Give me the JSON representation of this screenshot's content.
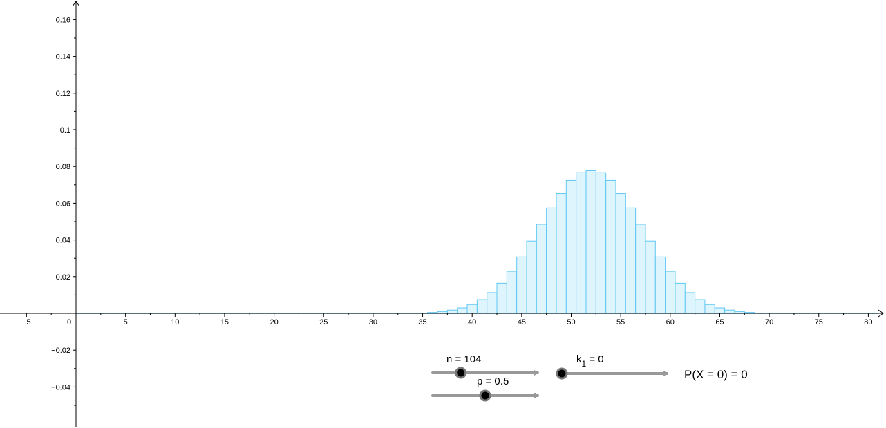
{
  "sliders": {
    "n": {
      "label": "n = 104",
      "value": 104,
      "min": 1,
      "max": 1000
    },
    "p": {
      "label": "p = 0.5",
      "value": 0.5,
      "min": 0,
      "max": 1
    },
    "k": {
      "label_main": "k",
      "label_sub": "1",
      "label_rest": " = 0",
      "value": 0,
      "min": 0,
      "max": 100
    }
  },
  "probability_text": "P(X = 0) = 0",
  "colors": {
    "bar_fill": "#dff5fd",
    "bar_stroke": "#5ec8f2",
    "slider_track": "#999999",
    "slider_thumb": "#000000"
  },
  "chart_data": {
    "type": "bar",
    "title": "",
    "xlabel": "",
    "ylabel": "",
    "xlim": [
      -7,
      81
    ],
    "ylim": [
      -0.06,
      0.17
    ],
    "grid": false,
    "x_ticks": [
      -5,
      0,
      5,
      10,
      15,
      20,
      25,
      30,
      35,
      40,
      45,
      50,
      55,
      60,
      65,
      70,
      75,
      80
    ],
    "x_tick_labels": [
      "−5",
      "0",
      "5",
      "10",
      "15",
      "20",
      "25",
      "30",
      "35",
      "40",
      "45",
      "50",
      "55",
      "60",
      "65",
      "70",
      "75",
      "80"
    ],
    "y_ticks": [
      -0.04,
      -0.02,
      0.02,
      0.04,
      0.06,
      0.08,
      0.1,
      0.12,
      0.14,
      0.16
    ],
    "y_tick_labels": [
      "−0.04",
      "−0.02",
      "0.02",
      "0.04",
      "0.06",
      "0.08",
      "0.1",
      "0.12",
      "0.14",
      "0.16"
    ],
    "series": [
      {
        "x": [
          35,
          36,
          37,
          38,
          39,
          40,
          41,
          42,
          43,
          44,
          45,
          46,
          47,
          48,
          49,
          50,
          51,
          52,
          53,
          54,
          55,
          56,
          57,
          58,
          59,
          60,
          61,
          62,
          63,
          64,
          65,
          66,
          67,
          68,
          69
        ],
        "values": [
          0.0002,
          0.0005,
          0.001,
          0.0018,
          0.003,
          0.0048,
          0.0075,
          0.0113,
          0.0164,
          0.0229,
          0.0307,
          0.0394,
          0.0485,
          0.0574,
          0.0652,
          0.0724,
          0.0766,
          0.078,
          0.0766,
          0.0724,
          0.0652,
          0.0574,
          0.0485,
          0.0394,
          0.0307,
          0.0229,
          0.0164,
          0.0113,
          0.0075,
          0.0048,
          0.003,
          0.0018,
          0.001,
          0.0005,
          0.0002
        ]
      }
    ]
  }
}
